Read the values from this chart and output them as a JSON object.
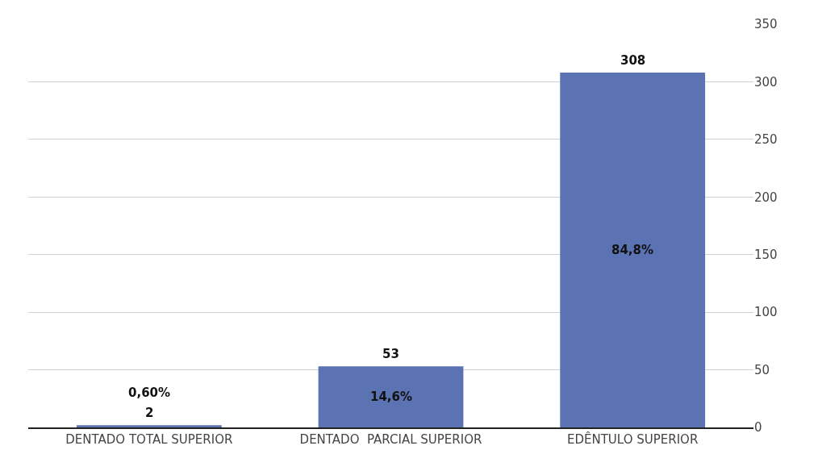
{
  "chart_data": {
    "type": "bar",
    "categories": [
      "DENTADO TOTAL SUPERIOR",
      "DENTADO  PARCIAL SUPERIOR",
      "EDÊNTULO SUPERIOR"
    ],
    "values": [
      2,
      53,
      308
    ],
    "color": "#5b72b3",
    "data_labels": true,
    "ylim": [
      0,
      350
    ],
    "yticks": [
      0,
      50,
      100,
      150,
      200,
      250,
      300,
      350
    ],
    "grid": "y",
    "legend": false,
    "annotations": [
      "0,60%",
      "14,6%",
      "84,8%"
    ]
  }
}
